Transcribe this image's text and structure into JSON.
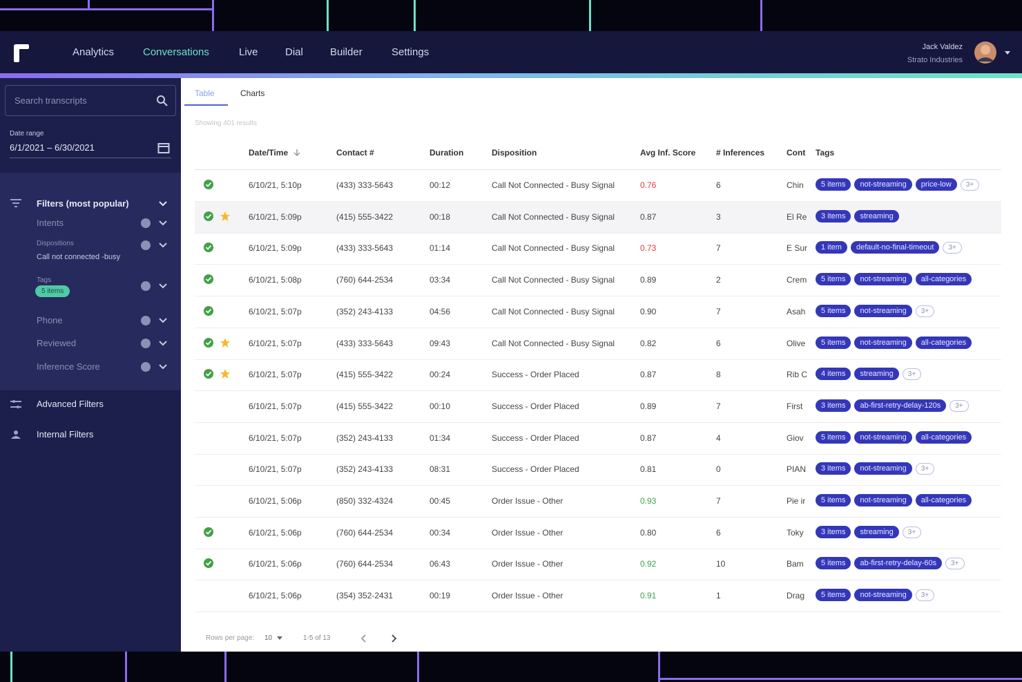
{
  "nav": {
    "items": [
      "Analytics",
      "Conversations",
      "Live",
      "Dial",
      "Builder",
      "Settings"
    ],
    "active": 1,
    "user_name": "Jack Valdez",
    "user_company": "Strato Industries"
  },
  "sidebar": {
    "search_placeholder": "Search transcripts",
    "date_range_label": "Date range",
    "date_range_value": "6/1/2021 – 6/30/2021",
    "filters_title": "Filters (most popular)",
    "filters": [
      {
        "label": "Intents"
      },
      {
        "label": "Dispositions",
        "value": "Call not connected -busy"
      },
      {
        "label": "Tags",
        "chip": "5 items"
      },
      {
        "label": "Phone"
      },
      {
        "label": "Reviewed"
      },
      {
        "label": "Inference Score"
      }
    ],
    "links": [
      "Advanced Filters",
      "Internal Filters"
    ]
  },
  "tabs": [
    "Table",
    "Charts"
  ],
  "active_tab": 0,
  "results_text": "Showing 401 results",
  "table": {
    "columns": [
      "Date/Time",
      "Contact #",
      "Duration",
      "Disposition",
      "Avg Inf. Score",
      "# Inferences",
      "Cont",
      "Tags"
    ],
    "rows": [
      {
        "reviewed": true,
        "starred": false,
        "date": "6/10/21, 5:10p",
        "contact": "(433) 333-5643",
        "duration": "00:12",
        "disposition": "Call Not Connected - Busy Signal",
        "score": "0.76",
        "score_color": "#e53935",
        "inferences": 6,
        "cont": "Chin",
        "tags": [
          "5 items",
          "not-streaming",
          "price-low"
        ],
        "more": "3+"
      },
      {
        "reviewed": true,
        "starred": true,
        "date": "6/10/21, 5:09p",
        "contact": "(415) 555-3422",
        "duration": "00:18",
        "disposition": "Call Not Connected - Busy Signal",
        "score": "0.87",
        "inferences": 3,
        "cont": "El Re",
        "tags": [
          "3 items",
          "streaming"
        ]
      },
      {
        "reviewed": true,
        "starred": false,
        "date": "6/10/21, 5:09p",
        "contact": "(433) 333-5643",
        "duration": "01:14",
        "disposition": "Call Not Connected - Busy Signal",
        "score": "0.73",
        "score_color": "#e53935",
        "inferences": 7,
        "cont": "E Sur",
        "tags": [
          "1 item",
          "default-no-final-timeout"
        ],
        "more": "3+"
      },
      {
        "reviewed": true,
        "starred": false,
        "date": "6/10/21, 5:08p",
        "contact": "(760) 644-2534",
        "duration": "03:34",
        "disposition": "Call Not Connected - Busy Signal",
        "score": "0.89",
        "inferences": 2,
        "cont": "Crem",
        "tags": [
          "5 items",
          "not-streaming",
          "all-categories"
        ]
      },
      {
        "reviewed": true,
        "starred": false,
        "date": "6/10/21, 5:07p",
        "contact": "(352) 243-4133",
        "duration": "04:56",
        "disposition": "Call Not Connected - Busy Signal",
        "score": "0.90",
        "inferences": 7,
        "cont": "Asah",
        "tags": [
          "5 items",
          "not-streaming"
        ],
        "more": "3+"
      },
      {
        "reviewed": true,
        "starred": true,
        "date": "6/10/21, 5:07p",
        "contact": "(433) 333-5643",
        "duration": "09:43",
        "disposition": "Call Not Connected - Busy Signal",
        "score": "0.82",
        "inferences": 6,
        "cont": "Olive",
        "tags": [
          "5 items",
          "not-streaming",
          "all-categories"
        ]
      },
      {
        "reviewed": true,
        "starred": true,
        "date": "6/10/21, 5:07p",
        "contact": "(415) 555-3422",
        "duration": "00:24",
        "disposition": "Success - Order Placed",
        "score": "0.87",
        "inferences": 8,
        "cont": "Rib C",
        "tags": [
          "4 items",
          "streaming"
        ],
        "more": "3+"
      },
      {
        "reviewed": false,
        "starred": false,
        "date": "6/10/21, 5:07p",
        "contact": "(415) 555-3422",
        "duration": "00:10",
        "disposition": "Success - Order Placed",
        "score": "0.89",
        "inferences": 7,
        "cont": "First",
        "tags": [
          "3 items",
          "ab-first-retry-delay-120s"
        ],
        "more": "3+"
      },
      {
        "reviewed": false,
        "starred": false,
        "date": "6/10/21, 5:07p",
        "contact": "(352) 243-4133",
        "duration": "01:34",
        "disposition": "Success - Order Placed",
        "score": "0.87",
        "inferences": 4,
        "cont": "Giov",
        "tags": [
          "5 items",
          "not-streaming",
          "all-categories"
        ]
      },
      {
        "reviewed": false,
        "starred": false,
        "date": "6/10/21, 5:07p",
        "contact": "(352) 243-4133",
        "duration": "08:31",
        "disposition": "Success - Order Placed",
        "score": "0.81",
        "inferences": 0,
        "cont": "PIAN",
        "tags": [
          "3 items",
          "not-streaming"
        ],
        "more": "3+"
      },
      {
        "reviewed": false,
        "starred": false,
        "date": "6/10/21, 5:06p",
        "contact": "(850) 332-4324",
        "duration": "00:45",
        "disposition": "Order Issue - Other",
        "score": "0.93",
        "score_color": "#43a047",
        "inferences": 7,
        "cont": "Pie ir",
        "tags": [
          "5 items",
          "not-streaming",
          "all-categories"
        ]
      },
      {
        "reviewed": true,
        "starred": false,
        "date": "6/10/21, 5:06p",
        "contact": "(760) 644-2534",
        "duration": "00:34",
        "disposition": "Order Issue - Other",
        "score": "0.80",
        "inferences": 6,
        "cont": "Toky",
        "tags": [
          "3 items",
          "streaming"
        ],
        "more": "3+"
      },
      {
        "reviewed": true,
        "starred": false,
        "date": "6/10/21, 5:06p",
        "contact": "(760) 644-2534",
        "duration": "06:43",
        "disposition": "Order Issue - Other",
        "score": "0.92",
        "score_color": "#43a047",
        "inferences": 10,
        "cont": "Bam",
        "tags": [
          "5 items",
          "ab-first-retry-delay-60s"
        ],
        "more": "3+"
      },
      {
        "reviewed": false,
        "starred": false,
        "date": "6/10/21, 5:06p",
        "contact": "(354) 352-2431",
        "duration": "00:19",
        "disposition": "Order Issue - Other",
        "score": "0.91",
        "score_color": "#43a047",
        "inferences": 1,
        "cont": "Drag",
        "tags": [
          "5 items",
          "not-streaming"
        ],
        "more": "3+"
      }
    ]
  },
  "pagination": {
    "rows_per_page_label": "Rows per page:",
    "rows_per_page": "10",
    "range": "1-5 of 13"
  }
}
